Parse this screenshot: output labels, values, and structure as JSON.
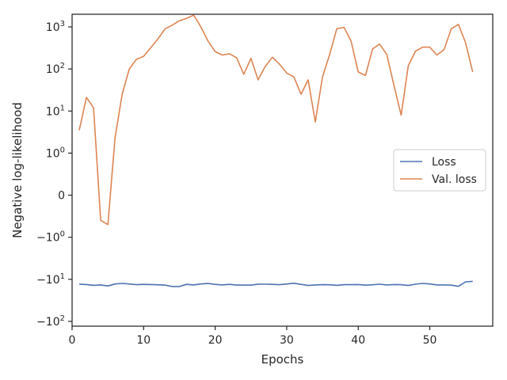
{
  "chart_data": {
    "type": "line",
    "xlabel": "Epochs",
    "ylabel": "Negative log-likelihood",
    "xlim": [
      0,
      58.8
    ],
    "yscale": "symlog",
    "linthresh": 1,
    "ylim": [
      -130,
      2000
    ],
    "grid": false,
    "legend_position": "center-right",
    "x_ticks": [
      0,
      10,
      20,
      30,
      40,
      50
    ],
    "x_tick_labels": [
      "0",
      "10",
      "20",
      "30",
      "40",
      "50"
    ],
    "y_ticks": [
      1000,
      100,
      10,
      1,
      0,
      -1,
      -10,
      -100
    ],
    "y_tick_labels": [
      {
        "base": "10",
        "exp": "3",
        "sign": ""
      },
      {
        "base": "10",
        "exp": "2",
        "sign": ""
      },
      {
        "base": "10",
        "exp": "1",
        "sign": ""
      },
      {
        "base": "10",
        "exp": "0",
        "sign": ""
      },
      {
        "base": "0",
        "exp": "",
        "sign": ""
      },
      {
        "base": "10",
        "exp": "0",
        "sign": "−"
      },
      {
        "base": "10",
        "exp": "1",
        "sign": "−"
      },
      {
        "base": "10",
        "exp": "2",
        "sign": "−"
      }
    ],
    "x": [
      1,
      2,
      3,
      4,
      5,
      6,
      7,
      8,
      9,
      10,
      11,
      12,
      13,
      14,
      15,
      16,
      17,
      18,
      19,
      20,
      21,
      22,
      23,
      24,
      25,
      26,
      27,
      28,
      29,
      30,
      31,
      32,
      33,
      34,
      35,
      36,
      37,
      38,
      39,
      40,
      41,
      42,
      43,
      44,
      45,
      46,
      47,
      48,
      49,
      50,
      51,
      52,
      53,
      54,
      55,
      56
    ],
    "series": [
      {
        "name": "Loss",
        "color": "#4c72b0",
        "values": [
          -13.0,
          -13.3,
          -13.9,
          -13.6,
          -14.4,
          -12.9,
          -12.5,
          -12.9,
          -13.4,
          -13.2,
          -13.3,
          -13.5,
          -13.8,
          -14.8,
          -14.8,
          -13.2,
          -13.6,
          -12.9,
          -12.6,
          -13.2,
          -13.6,
          -13.2,
          -13.7,
          -13.7,
          -13.8,
          -13.0,
          -13.1,
          -13.2,
          -13.4,
          -12.9,
          -12.4,
          -13.2,
          -14.0,
          -13.6,
          -13.4,
          -13.5,
          -13.9,
          -13.4,
          -13.4,
          -13.3,
          -13.8,
          -13.5,
          -13.1,
          -13.6,
          -13.3,
          -13.4,
          -14.0,
          -13.1,
          -12.5,
          -12.9,
          -13.6,
          -13.6,
          -13.8,
          -14.7,
          -11.5,
          -11.2
        ]
      },
      {
        "name": "Val. loss",
        "color": "#dd8452",
        "values": [
          3.5,
          21,
          12,
          -0.6,
          -0.7,
          2.3,
          25,
          100,
          170,
          200,
          320,
          520,
          900,
          1100,
          1400,
          1600,
          1900,
          1000,
          460,
          260,
          215,
          230,
          185,
          75,
          180,
          55,
          115,
          190,
          130,
          80,
          65,
          25,
          55,
          5.5,
          65,
          220,
          900,
          980,
          460,
          85,
          70,
          300,
          390,
          220,
          40,
          8,
          120,
          265,
          330,
          330,
          215,
          290,
          900,
          1150,
          420,
          85
        ]
      }
    ]
  }
}
